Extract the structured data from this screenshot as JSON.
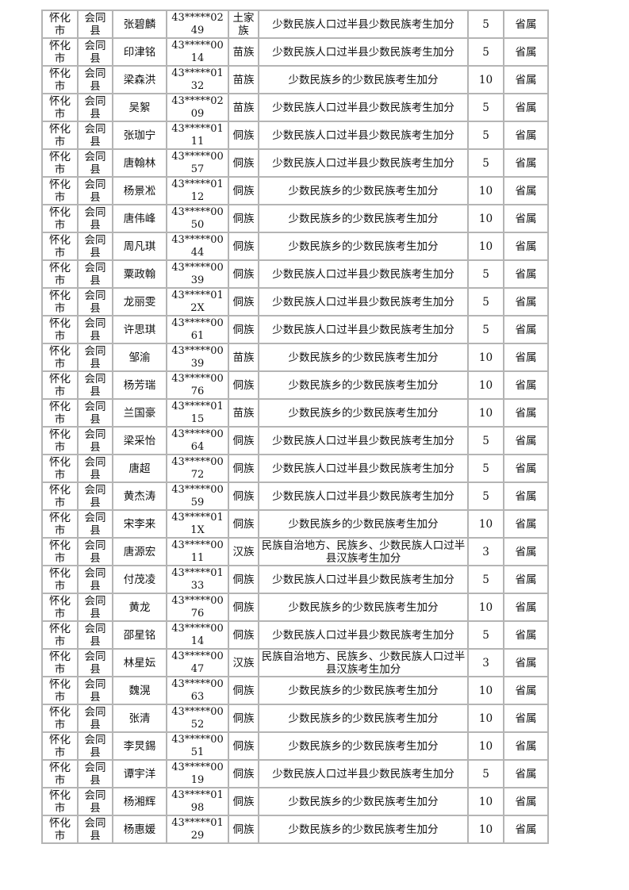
{
  "reasons": {
    "A": "少数民族人口过半县少数民族考生加分",
    "B": "少数民族乡的少数民族考生加分",
    "C": "民族自治地方、民族乡、少数民族人口过半县汉族考生加分"
  },
  "rows": [
    {
      "city": "怀化市",
      "county": "会同县",
      "name": "张碧麟",
      "id": "43*****0249",
      "ethnicity": "土家族",
      "reason": "少数民族人口过半县少数民族考生加分",
      "points": "5",
      "level": "省属"
    },
    {
      "city": "怀化市",
      "county": "会同县",
      "name": "印津铭",
      "id": "43*****0014",
      "ethnicity": "苗族",
      "reason": "少数民族人口过半县少数民族考生加分",
      "points": "5",
      "level": "省属"
    },
    {
      "city": "怀化市",
      "county": "会同县",
      "name": "梁森洪",
      "id": "43*****0132",
      "ethnicity": "苗族",
      "reason": "少数民族乡的少数民族考生加分",
      "points": "10",
      "level": "省属"
    },
    {
      "city": "怀化市",
      "county": "会同县",
      "name": "吴絮",
      "id": "43*****0209",
      "ethnicity": "苗族",
      "reason": "少数民族人口过半县少数民族考生加分",
      "points": "5",
      "level": "省属"
    },
    {
      "city": "怀化市",
      "county": "会同县",
      "name": "张珈宁",
      "id": "43*****0111",
      "ethnicity": "侗族",
      "reason": "少数民族人口过半县少数民族考生加分",
      "points": "5",
      "level": "省属"
    },
    {
      "city": "怀化市",
      "county": "会同县",
      "name": "唐翰林",
      "id": "43*****0057",
      "ethnicity": "侗族",
      "reason": "少数民族人口过半县少数民族考生加分",
      "points": "5",
      "level": "省属"
    },
    {
      "city": "怀化市",
      "county": "会同县",
      "name": "杨景凇",
      "id": "43*****0112",
      "ethnicity": "侗族",
      "reason": "少数民族乡的少数民族考生加分",
      "points": "10",
      "level": "省属"
    },
    {
      "city": "怀化市",
      "county": "会同县",
      "name": "唐伟峰",
      "id": "43*****0050",
      "ethnicity": "侗族",
      "reason": "少数民族乡的少数民族考生加分",
      "points": "10",
      "level": "省属"
    },
    {
      "city": "怀化市",
      "county": "会同县",
      "name": "周凡琪",
      "id": "43*****0044",
      "ethnicity": "侗族",
      "reason": "少数民族乡的少数民族考生加分",
      "points": "10",
      "level": "省属"
    },
    {
      "city": "怀化市",
      "county": "会同县",
      "name": "粟政翰",
      "id": "43*****0039",
      "ethnicity": "侗族",
      "reason": "少数民族人口过半县少数民族考生加分",
      "points": "5",
      "level": "省属"
    },
    {
      "city": "怀化市",
      "county": "会同县",
      "name": "龙丽雯",
      "id": "43*****012X",
      "ethnicity": "侗族",
      "reason": "少数民族人口过半县少数民族考生加分",
      "points": "5",
      "level": "省属"
    },
    {
      "city": "怀化市",
      "county": "会同县",
      "name": "许思琪",
      "id": "43*****0061",
      "ethnicity": "侗族",
      "reason": "少数民族人口过半县少数民族考生加分",
      "points": "5",
      "level": "省属"
    },
    {
      "city": "怀化市",
      "county": "会同县",
      "name": "邹渝",
      "id": "43*****0039",
      "ethnicity": "苗族",
      "reason": "少数民族乡的少数民族考生加分",
      "points": "10",
      "level": "省属"
    },
    {
      "city": "怀化市",
      "county": "会同县",
      "name": "杨芳瑞",
      "id": "43*****0076",
      "ethnicity": "侗族",
      "reason": "少数民族乡的少数民族考生加分",
      "points": "10",
      "level": "省属"
    },
    {
      "city": "怀化市",
      "county": "会同县",
      "name": "兰国豪",
      "id": "43*****0115",
      "ethnicity": "苗族",
      "reason": "少数民族乡的少数民族考生加分",
      "points": "10",
      "level": "省属"
    },
    {
      "city": "怀化市",
      "county": "会同县",
      "name": "梁采怡",
      "id": "43*****0064",
      "ethnicity": "侗族",
      "reason": "少数民族人口过半县少数民族考生加分",
      "points": "5",
      "level": "省属"
    },
    {
      "city": "怀化市",
      "county": "会同县",
      "name": "唐超",
      "id": "43*****0072",
      "ethnicity": "侗族",
      "reason": "少数民族人口过半县少数民族考生加分",
      "points": "5",
      "level": "省属"
    },
    {
      "city": "怀化市",
      "county": "会同县",
      "name": "黄杰涛",
      "id": "43*****0059",
      "ethnicity": "侗族",
      "reason": "少数民族人口过半县少数民族考生加分",
      "points": "5",
      "level": "省属"
    },
    {
      "city": "怀化市",
      "county": "会同县",
      "name": "宋李来",
      "id": "43*****011X",
      "ethnicity": "侗族",
      "reason": "少数民族乡的少数民族考生加分",
      "points": "10",
      "level": "省属"
    },
    {
      "city": "怀化市",
      "county": "会同县",
      "name": "唐源宏",
      "id": "43*****0011",
      "ethnicity": "汉族",
      "reason": "民族自治地方、民族乡、少数民族人口过半县汉族考生加分",
      "points": "3",
      "level": "省属"
    },
    {
      "city": "怀化市",
      "county": "会同县",
      "name": "付茂凌",
      "id": "43*****0133",
      "ethnicity": "侗族",
      "reason": "少数民族人口过半县少数民族考生加分",
      "points": "5",
      "level": "省属"
    },
    {
      "city": "怀化市",
      "county": "会同县",
      "name": "黄龙",
      "id": "43*****0076",
      "ethnicity": "侗族",
      "reason": "少数民族乡的少数民族考生加分",
      "points": "10",
      "level": "省属"
    },
    {
      "city": "怀化市",
      "county": "会同县",
      "name": "邵星铭",
      "id": "43*****0014",
      "ethnicity": "侗族",
      "reason": "少数民族人口过半县少数民族考生加分",
      "points": "5",
      "level": "省属"
    },
    {
      "city": "怀化市",
      "county": "会同县",
      "name": "林星妘",
      "id": "43*****0047",
      "ethnicity": "汉族",
      "reason": "民族自治地方、民族乡、少数民族人口过半县汉族考生加分",
      "points": "3",
      "level": "省属"
    },
    {
      "city": "怀化市",
      "county": "会同县",
      "name": "魏滉",
      "id": "43*****0063",
      "ethnicity": "侗族",
      "reason": "少数民族乡的少数民族考生加分",
      "points": "10",
      "level": "省属"
    },
    {
      "city": "怀化市",
      "county": "会同县",
      "name": "张清",
      "id": "43*****0052",
      "ethnicity": "侗族",
      "reason": "少数民族乡的少数民族考生加分",
      "points": "10",
      "level": "省属"
    },
    {
      "city": "怀化市",
      "county": "会同县",
      "name": "李炅錫",
      "id": "43*****0051",
      "ethnicity": "侗族",
      "reason": "少数民族乡的少数民族考生加分",
      "points": "10",
      "level": "省属"
    },
    {
      "city": "怀化市",
      "county": "会同县",
      "name": "谭宇洋",
      "id": "43*****0019",
      "ethnicity": "侗族",
      "reason": "少数民族人口过半县少数民族考生加分",
      "points": "5",
      "level": "省属"
    },
    {
      "city": "怀化市",
      "county": "会同县",
      "name": "杨湘辉",
      "id": "43*****0198",
      "ethnicity": "侗族",
      "reason": "少数民族乡的少数民族考生加分",
      "points": "10",
      "level": "省属"
    },
    {
      "city": "怀化市",
      "county": "会同县",
      "name": "杨惠媛",
      "id": "43*****0129",
      "ethnicity": "侗族",
      "reason": "少数民族乡的少数民族考生加分",
      "points": "10",
      "level": "省属"
    }
  ]
}
